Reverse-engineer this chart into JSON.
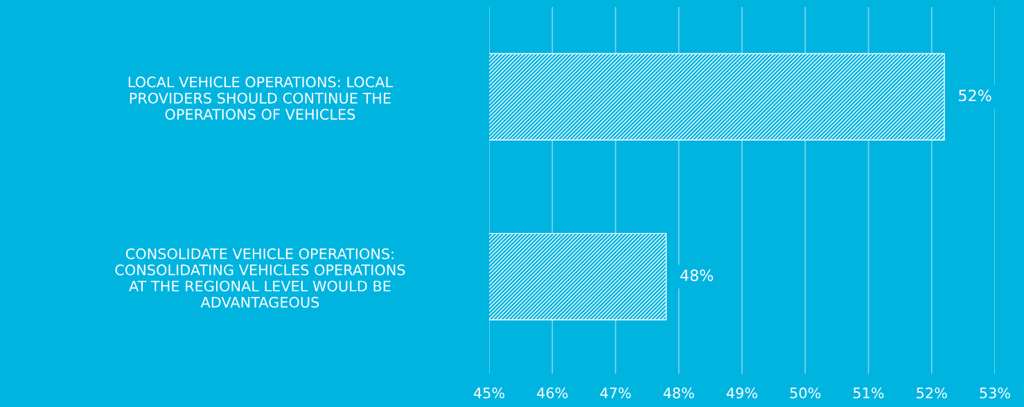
{
  "chart_data": {
    "type": "bar",
    "orientation": "horizontal",
    "categories": [
      "LOCAL VEHICLE OPERATIONS: LOCAL\nPROVIDERS SHOULD CONTINUE THE\nOPERATIONS OF VEHICLES",
      "CONSOLIDATE VEHICLE OPERATIONS:\nCONSOLIDATING VEHICLES OPERATIONS\nAT THE REGIONAL LEVEL WOULD BE\nADVANTAGEOUS"
    ],
    "values": [
      52.2,
      47.8
    ],
    "value_labels": [
      "52%",
      "48%"
    ],
    "color": "#ffffff",
    "xlim": [
      45,
      53
    ],
    "xticks": [
      {
        "value": 45,
        "label": "45%"
      },
      {
        "value": 46,
        "label": "46%"
      },
      {
        "value": 47,
        "label": "47%"
      },
      {
        "value": 48,
        "label": "48%"
      },
      {
        "value": 49,
        "label": "49%"
      },
      {
        "value": 50,
        "label": "50%"
      },
      {
        "value": 51,
        "label": "51%"
      },
      {
        "value": 52,
        "label": "52%"
      },
      {
        "value": 53,
        "label": "53%"
      }
    ],
    "grid": "x"
  }
}
